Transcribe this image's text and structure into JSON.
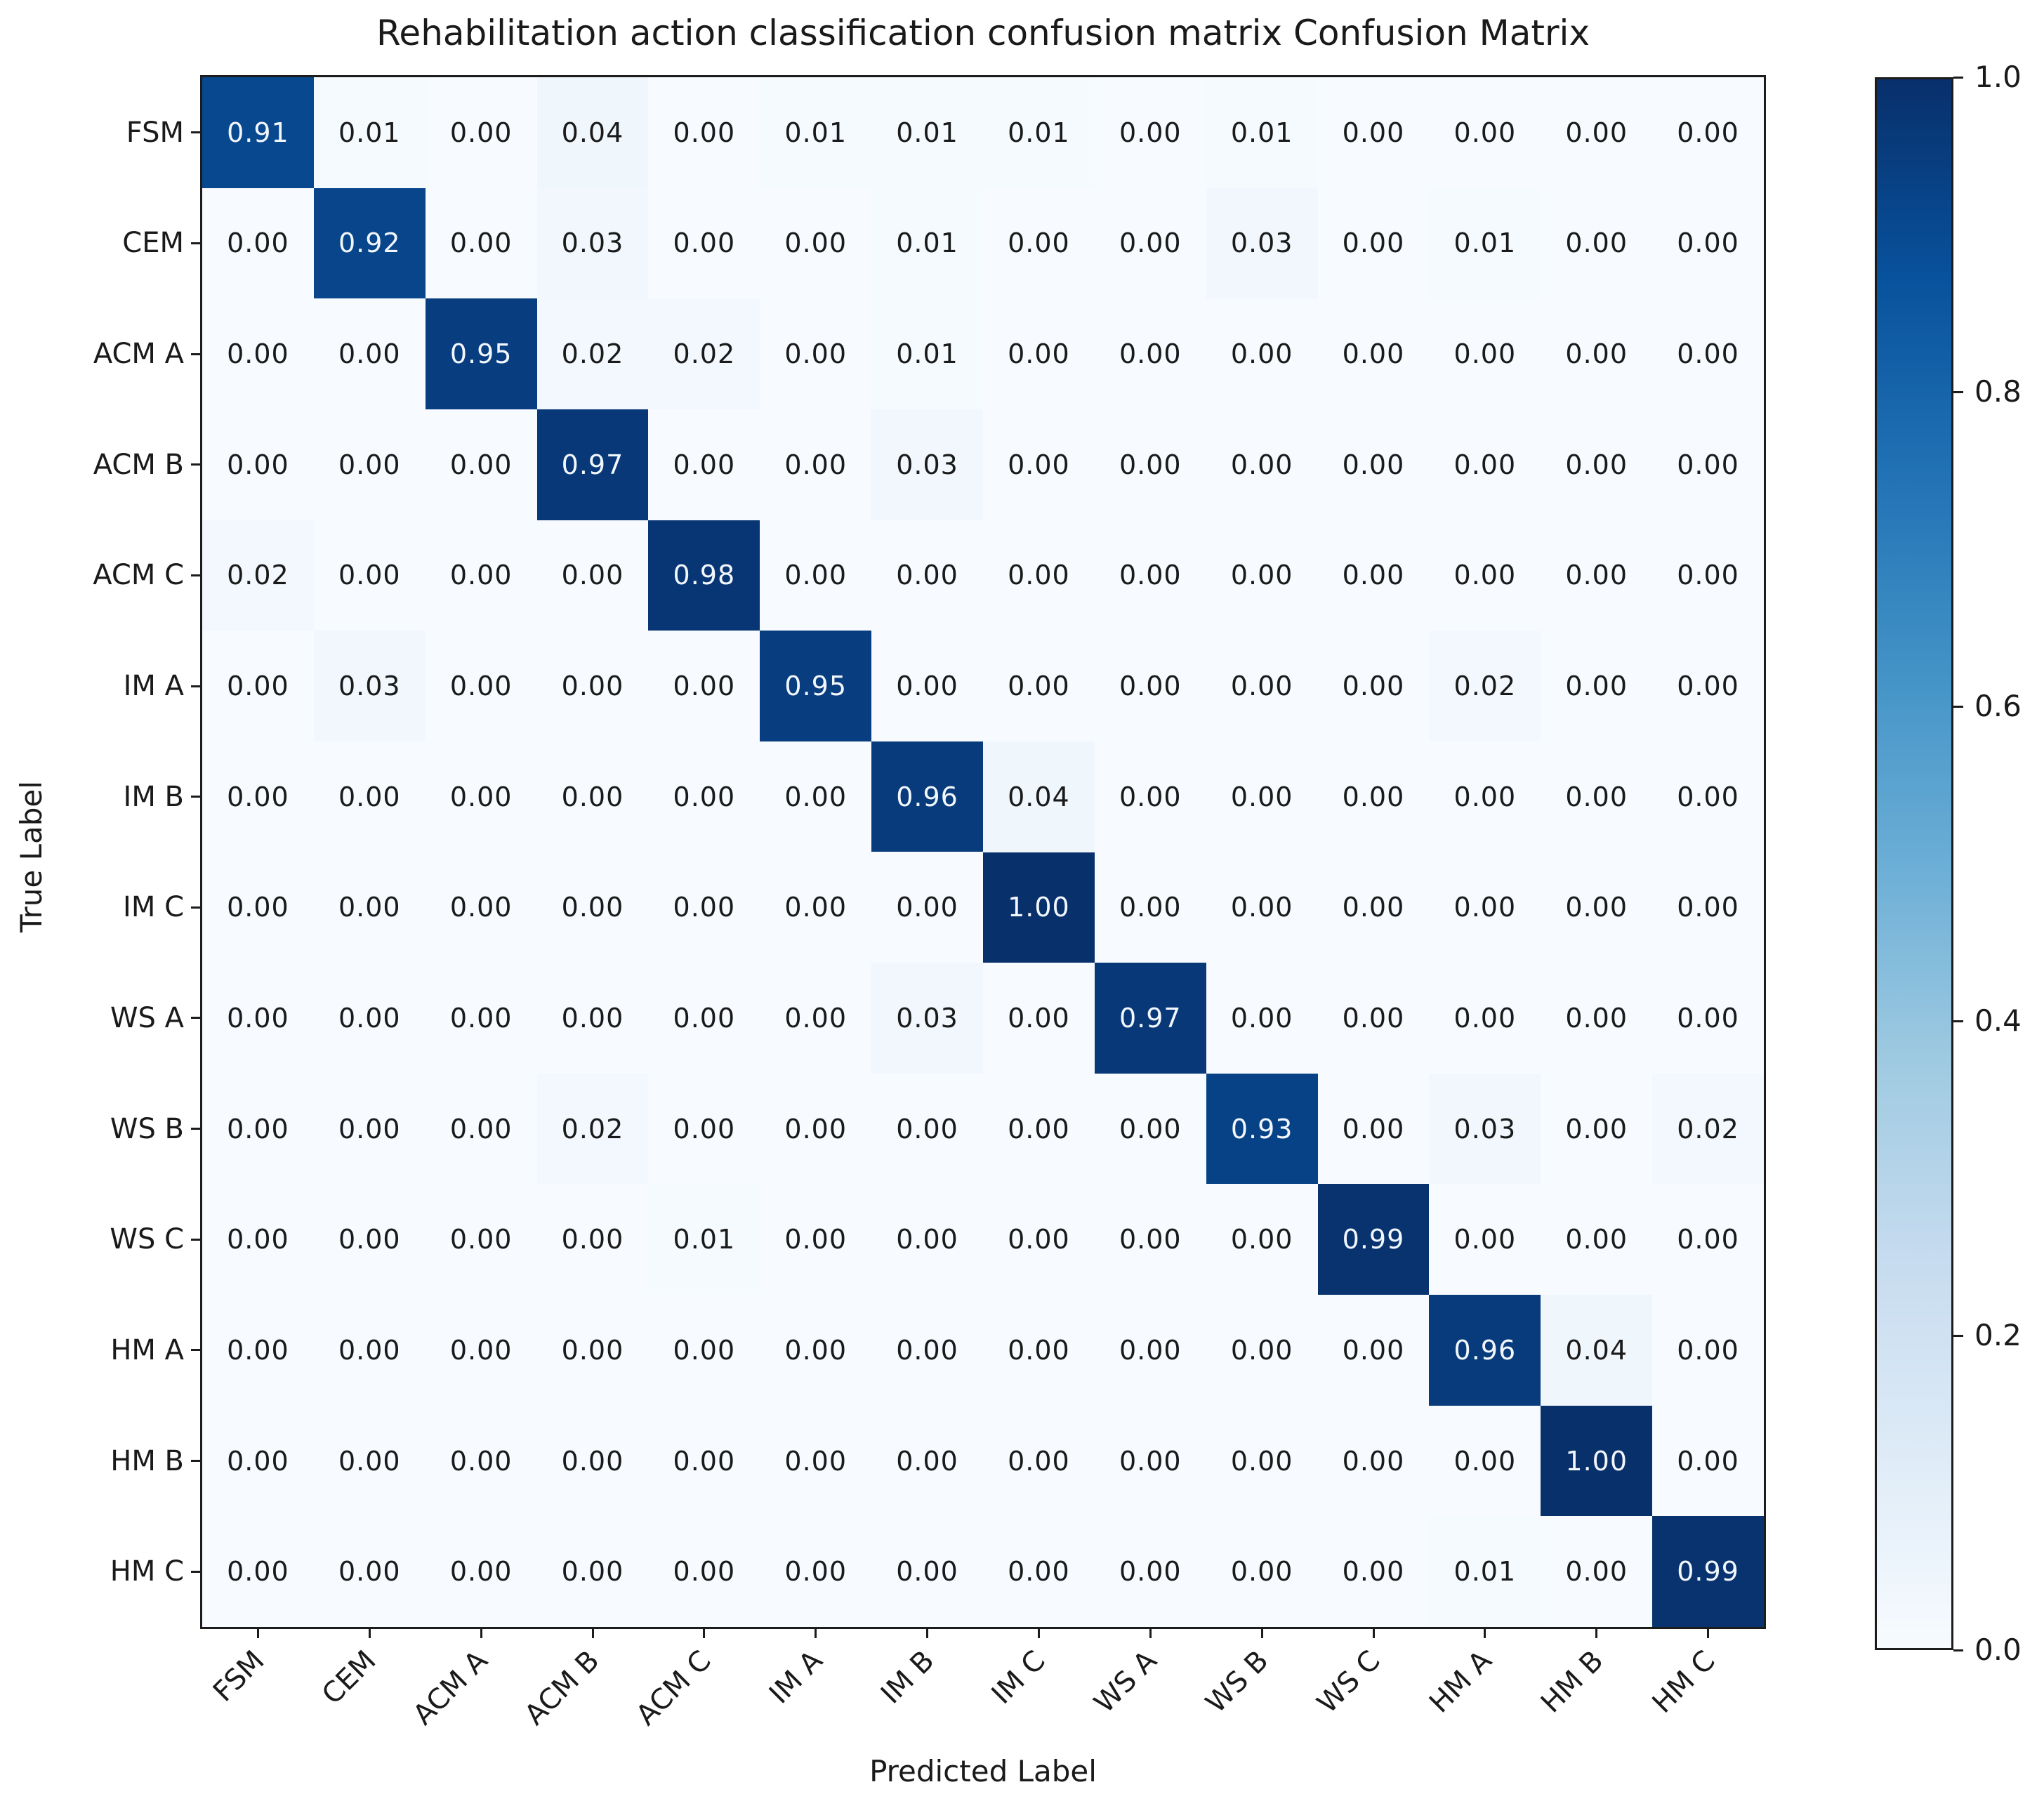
{
  "title": "Rehabilitation action classification confusion matrix Confusion Matrix",
  "chart_data": {
    "type": "heatmap",
    "title": "Rehabilitation action classification confusion matrix Confusion Matrix",
    "xlabel": "Predicted Label",
    "ylabel": "True Label",
    "categories": [
      "FSM",
      "CEM",
      "ACM A",
      "ACM B",
      "ACM C",
      "IM A",
      "IM B",
      "IM C",
      "WS A",
      "WS B",
      "WS C",
      "HM A",
      "HM B",
      "HM C"
    ],
    "matrix": [
      [
        0.91,
        0.01,
        0.0,
        0.04,
        0.0,
        0.01,
        0.01,
        0.01,
        0.0,
        0.01,
        0.0,
        0.0,
        0.0,
        0.0
      ],
      [
        0.0,
        0.92,
        0.0,
        0.03,
        0.0,
        0.0,
        0.01,
        0.0,
        0.0,
        0.03,
        0.0,
        0.01,
        0.0,
        0.0
      ],
      [
        0.0,
        0.0,
        0.95,
        0.02,
        0.02,
        0.0,
        0.01,
        0.0,
        0.0,
        0.0,
        0.0,
        0.0,
        0.0,
        0.0
      ],
      [
        0.0,
        0.0,
        0.0,
        0.97,
        0.0,
        0.0,
        0.03,
        0.0,
        0.0,
        0.0,
        0.0,
        0.0,
        0.0,
        0.0
      ],
      [
        0.02,
        0.0,
        0.0,
        0.0,
        0.98,
        0.0,
        0.0,
        0.0,
        0.0,
        0.0,
        0.0,
        0.0,
        0.0,
        0.0
      ],
      [
        0.0,
        0.03,
        0.0,
        0.0,
        0.0,
        0.95,
        0.0,
        0.0,
        0.0,
        0.0,
        0.0,
        0.02,
        0.0,
        0.0
      ],
      [
        0.0,
        0.0,
        0.0,
        0.0,
        0.0,
        0.0,
        0.96,
        0.04,
        0.0,
        0.0,
        0.0,
        0.0,
        0.0,
        0.0
      ],
      [
        0.0,
        0.0,
        0.0,
        0.0,
        0.0,
        0.0,
        0.0,
        1.0,
        0.0,
        0.0,
        0.0,
        0.0,
        0.0,
        0.0
      ],
      [
        0.0,
        0.0,
        0.0,
        0.0,
        0.0,
        0.0,
        0.03,
        0.0,
        0.97,
        0.0,
        0.0,
        0.0,
        0.0,
        0.0
      ],
      [
        0.0,
        0.0,
        0.0,
        0.02,
        0.0,
        0.0,
        0.0,
        0.0,
        0.0,
        0.93,
        0.0,
        0.03,
        0.0,
        0.02
      ],
      [
        0.0,
        0.0,
        0.0,
        0.0,
        0.01,
        0.0,
        0.0,
        0.0,
        0.0,
        0.0,
        0.99,
        0.0,
        0.0,
        0.0
      ],
      [
        0.0,
        0.0,
        0.0,
        0.0,
        0.0,
        0.0,
        0.0,
        0.0,
        0.0,
        0.0,
        0.0,
        0.96,
        0.04,
        0.0
      ],
      [
        0.0,
        0.0,
        0.0,
        0.0,
        0.0,
        0.0,
        0.0,
        0.0,
        0.0,
        0.0,
        0.0,
        0.0,
        1.0,
        0.0
      ],
      [
        0.0,
        0.0,
        0.0,
        0.0,
        0.0,
        0.0,
        0.0,
        0.0,
        0.0,
        0.0,
        0.0,
        0.01,
        0.0,
        0.99
      ]
    ],
    "value_format": "2-decimals",
    "colormap": "Blues",
    "vmin": 0.0,
    "vmax": 1.0,
    "colorbar_ticks": [
      "1.0",
      "0.8",
      "0.6",
      "0.4",
      "0.2",
      "0.0"
    ],
    "colorbar_position": "right",
    "grid": false,
    "x_tick_rotation_deg": 45
  }
}
